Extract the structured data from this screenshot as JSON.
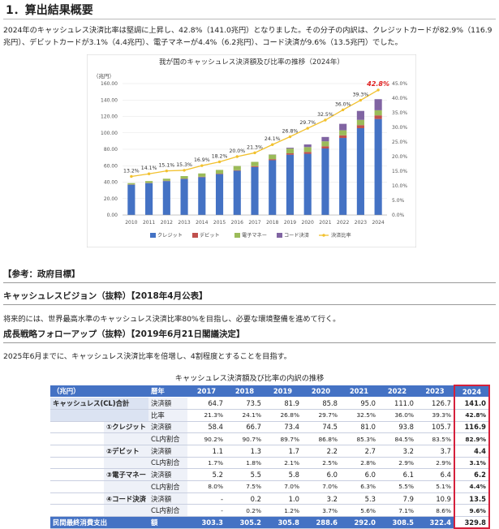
{
  "heading": "1．算出結果概要",
  "intro": "2024年のキャッシュレス決済比率は堅調に上昇し、42.8%（141.0兆円）となりました。その分子の内訳は、クレジットカードが82.9%（116.9兆円）、デビットカードが3.1%（4.4兆円）、電子マネーが4.4%（6.2兆円）、コード決済が9.6%（13.5兆円）でした。",
  "chart_data": {
    "type": "bar",
    "title": "我が国のキャッシュレス決済額及び比率の推移（2024年）",
    "ylabel": "（兆円）",
    "ylim": [
      0,
      160
    ],
    "y2lim": [
      0,
      45
    ],
    "y_ticks": [
      "0.00",
      "20.00",
      "40.00",
      "60.00",
      "80.00",
      "100.00",
      "120.00",
      "140.00",
      "160.00"
    ],
    "y2_ticks": [
      "0.0%",
      "5.0%",
      "10.0%",
      "15.0%",
      "20.0%",
      "25.0%",
      "30.0%",
      "35.0%",
      "40.0%",
      "45.0%"
    ],
    "categories": [
      "2010",
      "2011",
      "2012",
      "2013",
      "2014",
      "2015",
      "2016",
      "2017",
      "2018",
      "2019",
      "2020",
      "2021",
      "2022",
      "2023",
      "2024"
    ],
    "series": [
      {
        "name": "クレジット",
        "color": "#4472c4",
        "values": [
          36.9,
          38.8,
          41.3,
          43.9,
          46.1,
          49.8,
          53.9,
          58.4,
          66.7,
          73.4,
          74.5,
          81.0,
          93.8,
          105.7,
          116.9
        ]
      },
      {
        "name": "デビット",
        "color": "#c0504d",
        "values": [
          0.3,
          0.3,
          0.4,
          0.4,
          0.5,
          0.5,
          0.6,
          1.1,
          1.3,
          1.7,
          2.2,
          2.7,
          3.2,
          3.7,
          4.4
        ]
      },
      {
        "name": "電子マネー",
        "color": "#9bbb59",
        "values": [
          1.6,
          2.2,
          2.5,
          3.1,
          4.0,
          4.6,
          5.1,
          5.2,
          5.5,
          5.8,
          6.0,
          6.0,
          6.1,
          6.4,
          6.2
        ]
      },
      {
        "name": "コード決済",
        "color": "#8064a2",
        "values": [
          0,
          0,
          0,
          0,
          0,
          0,
          0,
          0,
          0.2,
          1.0,
          3.2,
          5.3,
          7.9,
          10.9,
          13.5
        ]
      }
    ],
    "line": {
      "name": "決済比率",
      "color": "#f2c12e",
      "values": [
        13.2,
        14.1,
        15.1,
        15.3,
        16.9,
        18.2,
        20.0,
        21.3,
        24.1,
        26.8,
        29.7,
        32.5,
        36.0,
        39.3,
        42.8
      ]
    },
    "line_labels": [
      "13.2%",
      "14.1%",
      "15.1%",
      "15.3%",
      "16.9%",
      "18.2%",
      "20.0%",
      "21.3%",
      "24.1%",
      "26.8%",
      "29.7%",
      "32.5%",
      "36.0%",
      "39.3%",
      "42.8%"
    ]
  },
  "ref_title": "【参考：政府目標】",
  "vision_title": "キャッシュレスビジョン（抜粋）【2018年4月公表】",
  "vision_text": "将来的には、世界最高水準のキャッシュレス決済比率80%を目指し、必要な環境整備を進めて行く。",
  "growth_title": "成長戦略フォローアップ（抜粋）【2019年6月21日閣議決定】",
  "growth_text": "2025年6月までに、キャッシュレス決済比率を倍増し、4割程度とすることを目指す。",
  "table_title": "キャッシュレス決済額及び比率の内訳の推移",
  "table": {
    "unit": "（兆円）",
    "year_label": "暦年",
    "years": [
      "2017",
      "2018",
      "2019",
      "2020",
      "2021",
      "2022",
      "2023",
      "2024"
    ],
    "rows": [
      {
        "cat": "キャッシュレス(CL)合計",
        "label": "決済額",
        "values": [
          "64.7",
          "73.5",
          "81.9",
          "85.8",
          "95.0",
          "111.0",
          "126.7",
          "141.0"
        ]
      },
      {
        "cat": "",
        "label": "比率",
        "values": [
          "21.3%",
          "24.1%",
          "26.8%",
          "29.7%",
          "32.5%",
          "36.0%",
          "39.3%",
          "42.8%"
        ]
      },
      {
        "cat": "①クレジット",
        "label": "決済額",
        "values": [
          "58.4",
          "66.7",
          "73.4",
          "74.5",
          "81.0",
          "93.8",
          "105.7",
          "116.9"
        ]
      },
      {
        "cat": "",
        "label": "CL内割合",
        "values": [
          "90.2%",
          "90.7%",
          "89.7%",
          "86.8%",
          "85.3%",
          "84.5%",
          "83.5%",
          "82.9%"
        ]
      },
      {
        "cat": "②デビット",
        "label": "決済額",
        "values": [
          "1.1",
          "1.3",
          "1.7",
          "2.2",
          "2.7",
          "3.2",
          "3.7",
          "4.4"
        ]
      },
      {
        "cat": "",
        "label": "CL内割合",
        "values": [
          "1.7%",
          "1.8%",
          "2.1%",
          "2.5%",
          "2.8%",
          "2.9%",
          "2.9%",
          "3.1%"
        ]
      },
      {
        "cat": "③電子マネー",
        "label": "決済額",
        "values": [
          "5.2",
          "5.5",
          "5.8",
          "6.0",
          "6.0",
          "6.1",
          "6.4",
          "6.2"
        ]
      },
      {
        "cat": "",
        "label": "CL内割合",
        "values": [
          "8.0%",
          "7.5%",
          "7.0%",
          "7.0%",
          "6.3%",
          "5.5%",
          "5.1%",
          "4.4%"
        ]
      },
      {
        "cat": "④コード決済",
        "label": "決済額",
        "values": [
          "-",
          "0.2",
          "1.0",
          "3.2",
          "5.3",
          "7.9",
          "10.9",
          "13.5"
        ]
      },
      {
        "cat": "",
        "label": "CL内割合",
        "values": [
          "-",
          "0.2%",
          "1.2%",
          "3.7%",
          "5.6%",
          "7.1%",
          "8.6%",
          "9.6%"
        ]
      }
    ],
    "footer": {
      "cat": "民間最終消費支出",
      "label": "額",
      "values": [
        "303.3",
        "305.2",
        "305.8",
        "288.6",
        "292.0",
        "308.5",
        "322.4",
        "329.8"
      ]
    }
  }
}
